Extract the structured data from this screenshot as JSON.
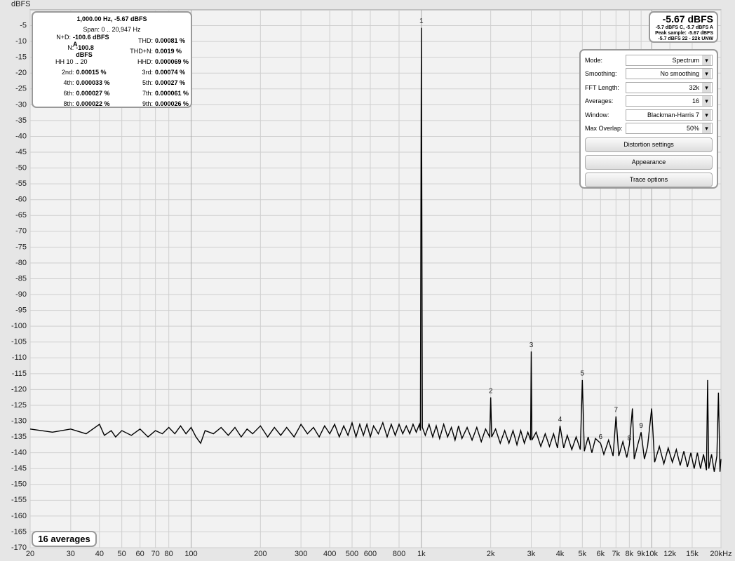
{
  "chart_data": {
    "type": "line",
    "y_label": "dBFS",
    "color": "#000000",
    "log_x": true,
    "grid": true,
    "xlim": [
      20,
      20000
    ],
    "ylim": [
      -170,
      0
    ],
    "xticks": [
      20,
      30,
      40,
      50,
      60,
      70,
      80,
      100,
      200,
      300,
      400,
      500,
      600,
      800,
      {
        "value": 1000,
        "label": "1k"
      },
      {
        "value": 2000,
        "label": "2k"
      },
      {
        "value": 3000,
        "label": "3k"
      },
      {
        "value": 4000,
        "label": "4k"
      },
      {
        "value": 5000,
        "label": "5k"
      },
      {
        "value": 6000,
        "label": "6k"
      },
      {
        "value": 7000,
        "label": "7k"
      },
      {
        "value": 8000,
        "label": "8k"
      },
      {
        "value": 9000,
        "label": "9k"
      },
      {
        "value": 10000,
        "label": "10k"
      },
      {
        "value": 12000,
        "label": "12k"
      },
      {
        "value": 15000,
        "label": "15k"
      },
      {
        "value": 20000,
        "label": "20kHz"
      }
    ],
    "yticks": [
      -5,
      -10,
      -15,
      -20,
      -25,
      -30,
      -35,
      -40,
      -45,
      -50,
      -55,
      -60,
      -65,
      -70,
      -75,
      -80,
      -85,
      -90,
      -95,
      -100,
      -105,
      -110,
      -115,
      -120,
      -125,
      -130,
      -135,
      -140,
      -145,
      -150,
      -155,
      -160,
      -165,
      -170
    ],
    "x": [
      20,
      25,
      30,
      35,
      40,
      42,
      45,
      47,
      50,
      55,
      60,
      65,
      70,
      75,
      80,
      85,
      90,
      95,
      100,
      105,
      110,
      115,
      125,
      135,
      145,
      155,
      165,
      175,
      185,
      200,
      215,
      230,
      245,
      260,
      280,
      300,
      320,
      340,
      360,
      380,
      400,
      420,
      440,
      460,
      480,
      500,
      520,
      540,
      560,
      580,
      600,
      620,
      650,
      680,
      710,
      740,
      770,
      800,
      830,
      860,
      890,
      920,
      950,
      980,
      990,
      1000,
      1010,
      1040,
      1080,
      1120,
      1160,
      1200,
      1250,
      1300,
      1350,
      1400,
      1450,
      1500,
      1580,
      1660,
      1740,
      1820,
      1900,
      1980,
      2000,
      2020,
      2100,
      2200,
      2300,
      2400,
      2500,
      2600,
      2700,
      2800,
      2900,
      2980,
      3000,
      3020,
      3150,
      3300,
      3450,
      3600,
      3750,
      3900,
      4000,
      4150,
      4300,
      4500,
      4700,
      4900,
      5000,
      5100,
      5300,
      5500,
      5700,
      6000,
      6200,
      6500,
      6800,
      7000,
      7200,
      7500,
      7800,
      8000,
      8250,
      8400,
      8700,
      9000,
      9300,
      9600,
      10000,
      10300,
      10800,
      11300,
      11800,
      12300,
      12800,
      13300,
      13800,
      14300,
      14800,
      15300,
      15800,
      16300,
      16800,
      17300,
      17500,
      17700,
      18200,
      18700,
      19200,
      19500,
      19800,
      20000
    ],
    "values": [
      -132.5,
      -133.5,
      -132.5,
      -134,
      -131,
      -134.5,
      -133,
      -135,
      -133,
      -134.5,
      -132.5,
      -135,
      -133,
      -134,
      -132,
      -134,
      -131.5,
      -134,
      -132,
      -135,
      -137,
      -133,
      -134,
      -132,
      -134.5,
      -132,
      -135,
      -132.5,
      -134,
      -131.5,
      -135,
      -132,
      -134.5,
      -132,
      -135,
      -131,
      -134,
      -132,
      -135,
      -131.5,
      -134,
      -131,
      -135,
      -131.5,
      -134.5,
      -130.5,
      -135,
      -131,
      -134.5,
      -131,
      -135,
      -131.5,
      -134,
      -130.5,
      -135,
      -131,
      -134.5,
      -131,
      -134,
      -131.5,
      -134,
      -131,
      -133.5,
      -131,
      -133,
      -5.67,
      -132,
      -134.5,
      -131,
      -135,
      -131.5,
      -135.5,
      -131,
      -135,
      -132,
      -136,
      -131.5,
      -135.5,
      -132,
      -136,
      -132,
      -136.5,
      -132.5,
      -135,
      -122.5,
      -135,
      -132.5,
      -137,
      -133,
      -137,
      -133,
      -137.5,
      -133,
      -137,
      -133.5,
      -136,
      -108,
      -136,
      -133.5,
      -138,
      -134,
      -138,
      -134,
      -138.5,
      -131.5,
      -138.5,
      -134.5,
      -139,
      -135,
      -139,
      -117,
      -139.5,
      -135,
      -140,
      -135.5,
      -137,
      -140.5,
      -136,
      -141,
      -128.5,
      -141,
      -136.5,
      -141.5,
      -137.5,
      -126,
      -142,
      -137.5,
      -133.5,
      -142,
      -138,
      -126,
      -143,
      -138,
      -143.5,
      -138.5,
      -143,
      -139,
      -144,
      -139.5,
      -144.5,
      -140,
      -145,
      -140,
      -145,
      -140.5,
      -145.5,
      -117,
      -145,
      -140.5,
      -146,
      -141,
      -121,
      -146,
      -142
    ],
    "harmonic_labels": [
      {
        "label": "1",
        "x": 1000,
        "y": -5.67
      },
      {
        "label": "2",
        "x": 2000,
        "y": -122.5
      },
      {
        "label": "3",
        "x": 3000,
        "y": -108
      },
      {
        "label": "4",
        "x": 4000,
        "y": -131.5
      },
      {
        "label": "5",
        "x": 5000,
        "y": -117
      },
      {
        "label": "6",
        "x": 6000,
        "y": -137
      },
      {
        "label": "7",
        "x": 7000,
        "y": -128.5
      },
      {
        "label": "8",
        "x": 8000,
        "y": -137.5
      },
      {
        "label": "9",
        "x": 9000,
        "y": -133.5
      }
    ]
  },
  "info_panel": {
    "header": "1,000.00 Hz, -5.67 dBFS",
    "span": "Span: 0 .. 20,947 Hz",
    "rows": [
      [
        {
          "label": "N+D:",
          "value": "-100.6 dBFS A"
        },
        {
          "label": "THD:",
          "value": "0.00081 %"
        }
      ],
      [
        {
          "label": "N:",
          "value": "-100.8 dBFS"
        },
        {
          "label": "THD+N:",
          "value": "0.0019 %"
        }
      ],
      [
        {
          "label": "HH 10 .. 20"
        },
        {
          "label": "HHD:",
          "value": "0.000069 %"
        }
      ],
      [
        {
          "label": "2nd:",
          "value": "0.00015 %"
        },
        {
          "label": "3rd:",
          "value": "0.00074 %"
        }
      ],
      [
        {
          "label": "4th:",
          "value": "0.000033 %"
        },
        {
          "label": "5th:",
          "value": "0.00027 %"
        }
      ],
      [
        {
          "label": "6th:",
          "value": "0.000027 %"
        },
        {
          "label": "7th:",
          "value": "0.000061 %"
        }
      ],
      [
        {
          "label": "8th:",
          "value": "0.000022 %"
        },
        {
          "label": "9th:",
          "value": "0.000026 %"
        }
      ]
    ]
  },
  "level_panel": {
    "main": "-5.67 dBFS",
    "lines": [
      "-5.7 dBFS C, -5.7 dBFS A",
      "Peak sample: -5.67 dBFS",
      "-5.7 dBFS 22 - 22k UNW"
    ]
  },
  "controls": {
    "fields": [
      {
        "label": "Mode:",
        "value": "Spectrum"
      },
      {
        "label": "Smoothing:",
        "value": "No  smoothing"
      },
      {
        "label": "FFT Length:",
        "value": "32k"
      },
      {
        "label": "Averages:",
        "value": "16"
      },
      {
        "label": "Window:",
        "value": "Blackman-Harris 7"
      },
      {
        "label": "Max Overlap:",
        "value": "50%"
      }
    ],
    "buttons": [
      "Distortion settings",
      "Appearance",
      "Trace options"
    ]
  },
  "averages_badge": "16 averages"
}
